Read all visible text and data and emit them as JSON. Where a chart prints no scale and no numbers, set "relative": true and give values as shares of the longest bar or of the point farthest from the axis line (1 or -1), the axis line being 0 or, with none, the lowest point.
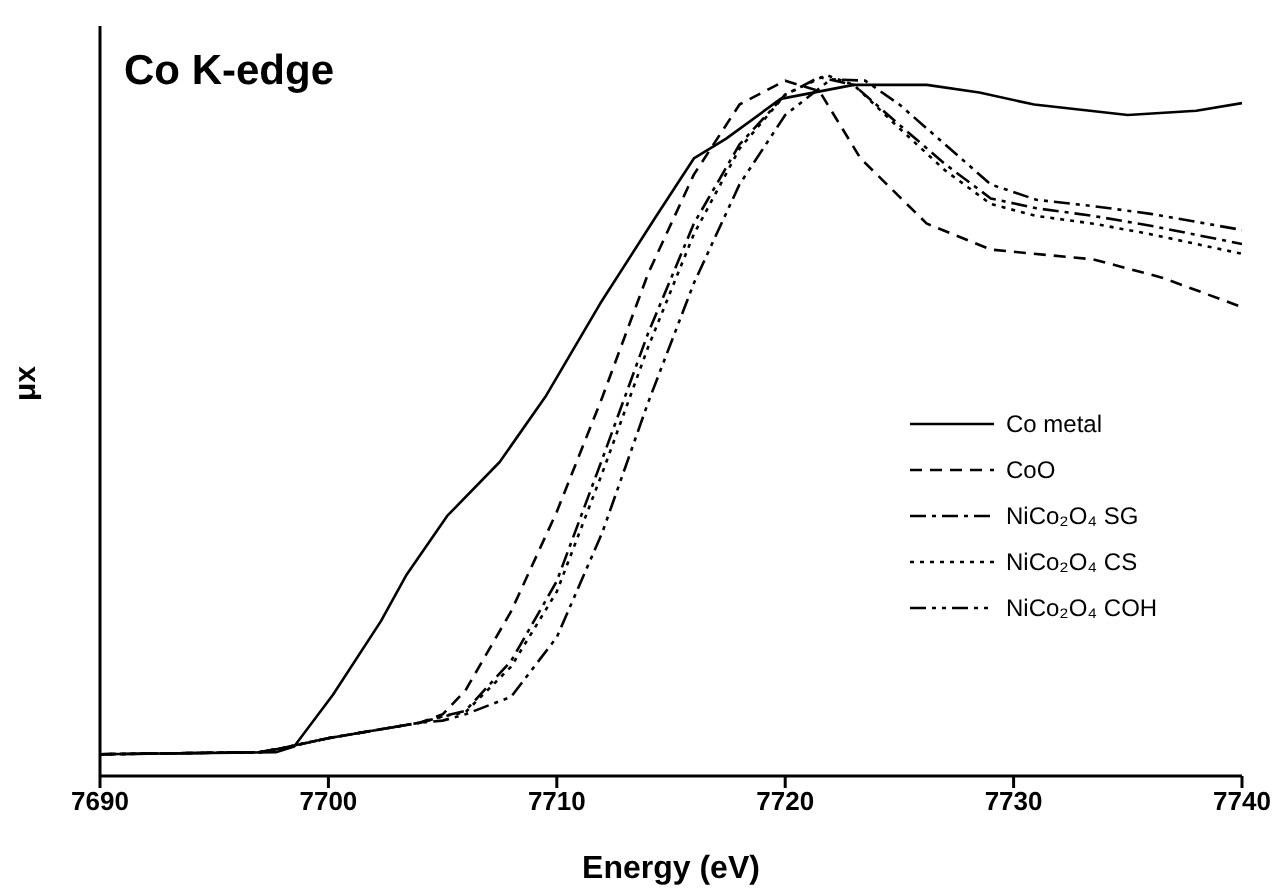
{
  "chart_data": {
    "type": "line",
    "title": "Co K-edge",
    "xlabel": "Energy (eV)",
    "ylabel": "μx",
    "relative": true,
    "tick_labels": "x",
    "xlim": [
      7690,
      7740
    ],
    "xticks": [
      7690,
      7700,
      7710,
      7720,
      7730,
      7740
    ],
    "legend": "right",
    "marker": "none",
    "series": [
      {
        "name": "Co metal",
        "color": "#000000",
        "line_style": "solid",
        "x": [
          7690,
          7697.7,
          7698.5,
          7700.2,
          7702.3,
          7703.4,
          7705.2,
          7707.5,
          7709.5,
          7711.9,
          7714.3,
          7716,
          7717.4,
          7719.8,
          7723,
          7726.2,
          7728.5,
          7730.9,
          7735,
          7738,
          7740
        ],
        "values": [
          0.031,
          0.034,
          0.042,
          0.116,
          0.221,
          0.286,
          0.371,
          0.448,
          0.541,
          0.674,
          0.796,
          0.881,
          0.909,
          0.966,
          0.986,
          0.986,
          0.975,
          0.958,
          0.943,
          0.949,
          0.96
        ]
      },
      {
        "name": "CoO",
        "color": "#000000",
        "line_style": "dashed",
        "x": [
          7690,
          7697,
          7698,
          7700,
          7702,
          7704,
          7705,
          7706,
          7708,
          7710,
          7712,
          7714,
          7716,
          7718,
          7720,
          7721.5,
          7723.3,
          7726.2,
          7729,
          7733.5,
          7736.5,
          7740
        ],
        "values": [
          0.031,
          0.034,
          0.04,
          0.054,
          0.065,
          0.076,
          0.088,
          0.122,
          0.235,
          0.377,
          0.541,
          0.717,
          0.858,
          0.958,
          0.992,
          0.977,
          0.881,
          0.788,
          0.751,
          0.737,
          0.711,
          0.669
        ]
      },
      {
        "name": "NiCo₂O₄ SG",
        "color": "#000000",
        "line_style": "dashdot",
        "x": [
          7690,
          7697,
          7698,
          7700,
          7702,
          7704,
          7705,
          7706,
          7708,
          7710,
          7712,
          7714,
          7716,
          7718,
          7720,
          7721.5,
          7723,
          7725,
          7727,
          7729,
          7731,
          7733.5,
          7736,
          7740
        ],
        "values": [
          0.031,
          0.034,
          0.04,
          0.054,
          0.065,
          0.076,
          0.085,
          0.093,
          0.164,
          0.278,
          0.453,
          0.632,
          0.788,
          0.901,
          0.972,
          0.997,
          0.986,
          0.929,
          0.873,
          0.824,
          0.81,
          0.799,
          0.785,
          0.759
        ]
      },
      {
        "name": "NiCo₂O₄ CS",
        "color": "#000000",
        "line_style": "dotted",
        "x": [
          7690,
          7697,
          7698,
          7700,
          7702,
          7704,
          7705,
          7706,
          7708,
          7710,
          7712,
          7714,
          7716,
          7718,
          7720,
          7721.8,
          7723,
          7725,
          7727,
          7729,
          7731,
          7733.5,
          7736,
          7740
        ],
        "values": [
          0.031,
          0.034,
          0.04,
          0.054,
          0.065,
          0.076,
          0.085,
          0.091,
          0.156,
          0.263,
          0.433,
          0.612,
          0.773,
          0.895,
          0.972,
          1,
          0.986,
          0.924,
          0.864,
          0.816,
          0.799,
          0.788,
          0.773,
          0.745
        ]
      },
      {
        "name": "NiCo₂O₄ COH",
        "color": "#000000",
        "line_style": "dashdotdot",
        "x": [
          7690,
          7697,
          7698,
          7700,
          7702,
          7704,
          7705,
          7706,
          7708,
          7710,
          7712,
          7714,
          7716,
          7718,
          7720,
          7722,
          7723.5,
          7725,
          7727,
          7729,
          7731,
          7733.5,
          7736,
          7740
        ],
        "values": [
          0.031,
          0.034,
          0.04,
          0.054,
          0.065,
          0.076,
          0.079,
          0.088,
          0.113,
          0.198,
          0.348,
          0.533,
          0.703,
          0.844,
          0.943,
          0.994,
          0.992,
          0.958,
          0.901,
          0.844,
          0.822,
          0.813,
          0.802,
          0.779
        ]
      }
    ]
  }
}
